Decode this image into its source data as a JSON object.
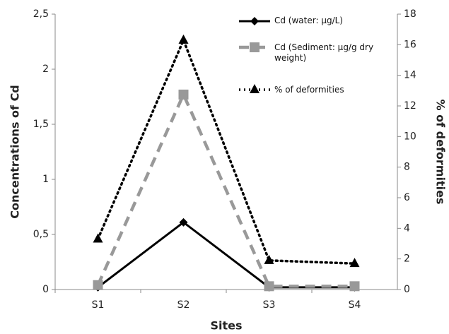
{
  "chart_data": {
    "type": "line",
    "categories": [
      "S1",
      "S2",
      "S3",
      "S4"
    ],
    "x_label": "Sites",
    "y_label": "Concentrations of Cd",
    "y2_label": "% of deformities",
    "ylim": [
      0,
      2.5
    ],
    "yticks": [
      0,
      {
        "value": 0.5,
        "label": "0,5"
      },
      1,
      {
        "value": 1.5,
        "label": "1,5"
      },
      2,
      {
        "value": 2.5,
        "label": "2,5"
      }
    ],
    "y2lim": [
      0,
      18
    ],
    "y2ticks": [
      0,
      2,
      4,
      6,
      8,
      10,
      12,
      14,
      16,
      18
    ],
    "series": [
      {
        "name": "Cd (water: µg/L)",
        "color": "#000000",
        "values": [
          0.02,
          0.61,
          0.02,
          0.02
        ]
      },
      {
        "name": "Cd (Sediment: µg/g dry weight)",
        "color": "#999999",
        "values": [
          0.04,
          1.77,
          0.03,
          0.03
        ]
      },
      {
        "name": "% of deformities",
        "color": "#000000",
        "axis": "y2",
        "values": [
          3.3,
          16.3,
          1.9,
          1.7
        ]
      }
    ]
  }
}
